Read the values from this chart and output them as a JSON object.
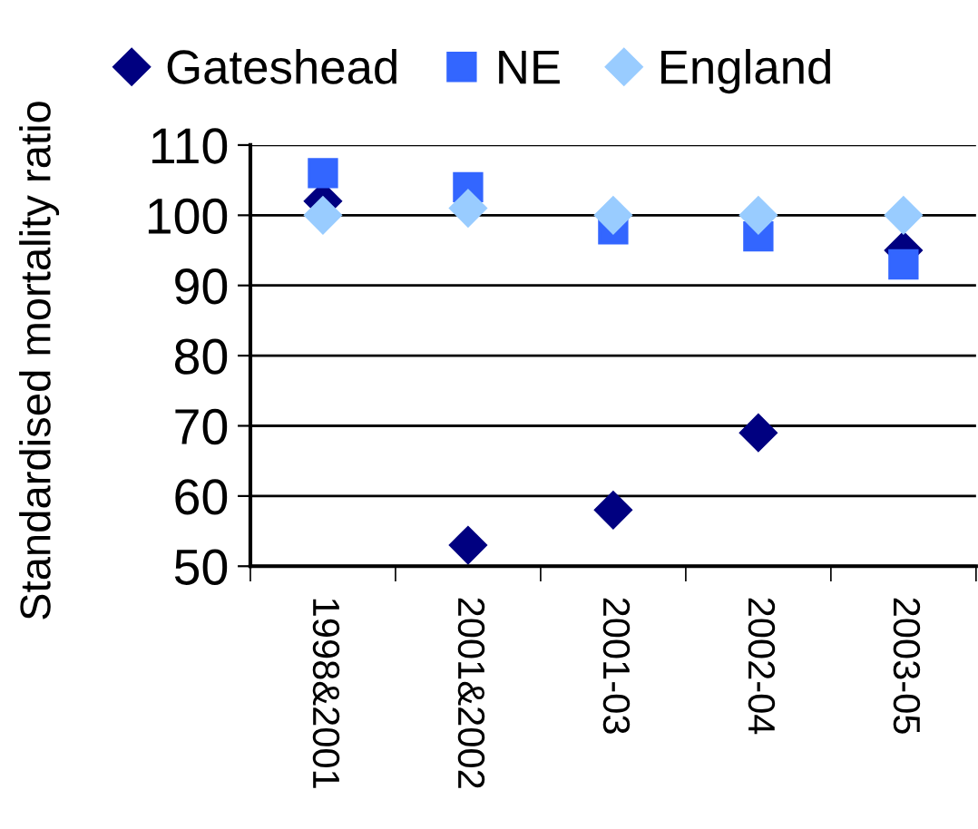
{
  "chart_data": {
    "type": "scatter",
    "ylabel": "Standardised mortality ratio",
    "categories": [
      "1998&2001",
      "2001&2002",
      "2001-03",
      "2002-04",
      "2003-05"
    ],
    "series": [
      {
        "name": "Gateshead",
        "color": "#000080",
        "marker": "diamond",
        "values": [
          102,
          53,
          58,
          69,
          95
        ]
      },
      {
        "name": "NE",
        "color": "#3366ff",
        "marker": "square",
        "values": [
          106,
          104,
          98,
          97,
          93
        ]
      },
      {
        "name": "England",
        "color": "#99ccff",
        "marker": "diamond",
        "values": [
          100,
          101,
          100,
          100,
          100
        ]
      }
    ],
    "ylim": [
      50,
      110
    ],
    "yticks": [
      50,
      60,
      70,
      80,
      90,
      100,
      110
    ],
    "grid": "y",
    "legend": "top"
  }
}
